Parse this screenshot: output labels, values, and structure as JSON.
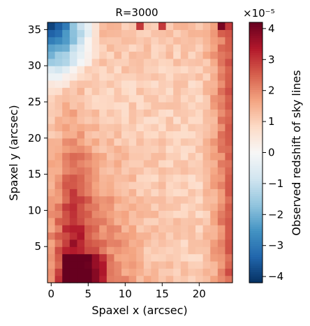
{
  "chart_data": {
    "type": "heatmap",
    "title": "R=3000",
    "xlabel": "Spaxel x (arcsec)",
    "ylabel": "Spaxel y (arcsec)",
    "colorbar_label": "Observed redshift of sky lines",
    "colorbar_exponent": "×10⁻⁵",
    "colormap": "RdBu_r",
    "vmin": -4.2,
    "vmax": 4.2,
    "grid": false,
    "xlim": [
      -0.5,
      24.5
    ],
    "ylim": [
      0,
      36
    ],
    "x_ticks": [
      0,
      5,
      10,
      15,
      20
    ],
    "y_ticks": [
      5,
      10,
      15,
      20,
      25,
      30,
      35
    ],
    "colorbar_ticks": [
      -4,
      -3,
      -2,
      -1,
      0,
      1,
      2,
      3,
      4
    ],
    "grid_size": {
      "nx": 25,
      "ny": 36
    },
    "note": "values estimated from color; units of 1e-5"
  }
}
